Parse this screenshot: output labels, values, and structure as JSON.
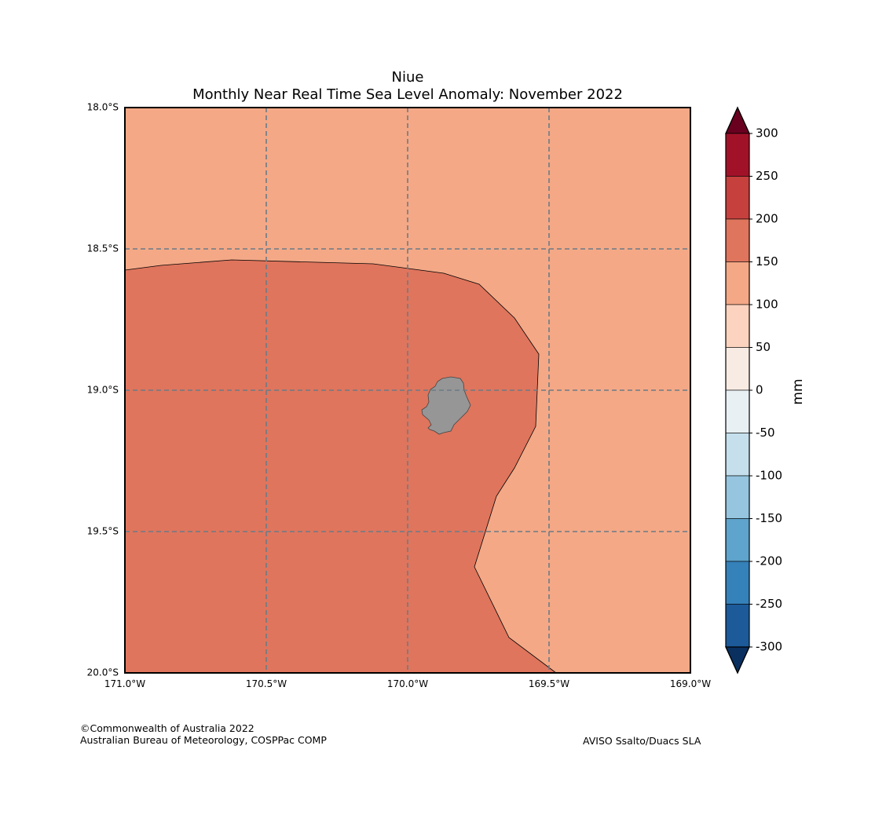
{
  "title": "Niue",
  "subtitle": "Monthly Near Real Time Sea Level Anomaly: November 2022",
  "map": {
    "lat_labels": [
      "18.0°S",
      "18.5°S",
      "19.0°S",
      "19.5°S",
      "20.0°S"
    ],
    "lon_labels": [
      "171.0°W",
      "170.5°W",
      "170.0°W",
      "169.5°W",
      "169.0°W"
    ],
    "extent": {
      "lon_min": -171.0,
      "lon_max": -169.0,
      "lat_min": -20.0,
      "lat_max": -18.0
    },
    "gridlines": true,
    "colors": {
      "ocean_high": "#f4a886",
      "ocean_higher": "#df755d",
      "land": "#969696",
      "grid": "#6b7b86"
    },
    "regions": [
      {
        "name": "sla-100-150",
        "color": "#f4a886"
      },
      {
        "name": "sla-150-200",
        "color": "#df755d"
      }
    ]
  },
  "colorbar": {
    "label": "mm",
    "ticks": [
      "300",
      "250",
      "200",
      "150",
      "100",
      "50",
      "0",
      "-50",
      "-100",
      "-150",
      "-200",
      "-250",
      "-300"
    ],
    "bins": [
      "#a11228",
      "#c6403e",
      "#df755d",
      "#f4a886",
      "#fcd3bf",
      "#f8ebe3",
      "#e8f0f4",
      "#c5dfec",
      "#95c5df",
      "#5ea4cc",
      "#3581ba",
      "#1c5a99"
    ],
    "over_color": "#6a0020",
    "under_color": "#09305f"
  },
  "footer": {
    "copyright": "©Commonwealth of Australia 2022",
    "agency": "Australian Bureau of Meteorology, COSPPac COMP",
    "source": "AVISO Ssalto/Duacs SLA"
  }
}
